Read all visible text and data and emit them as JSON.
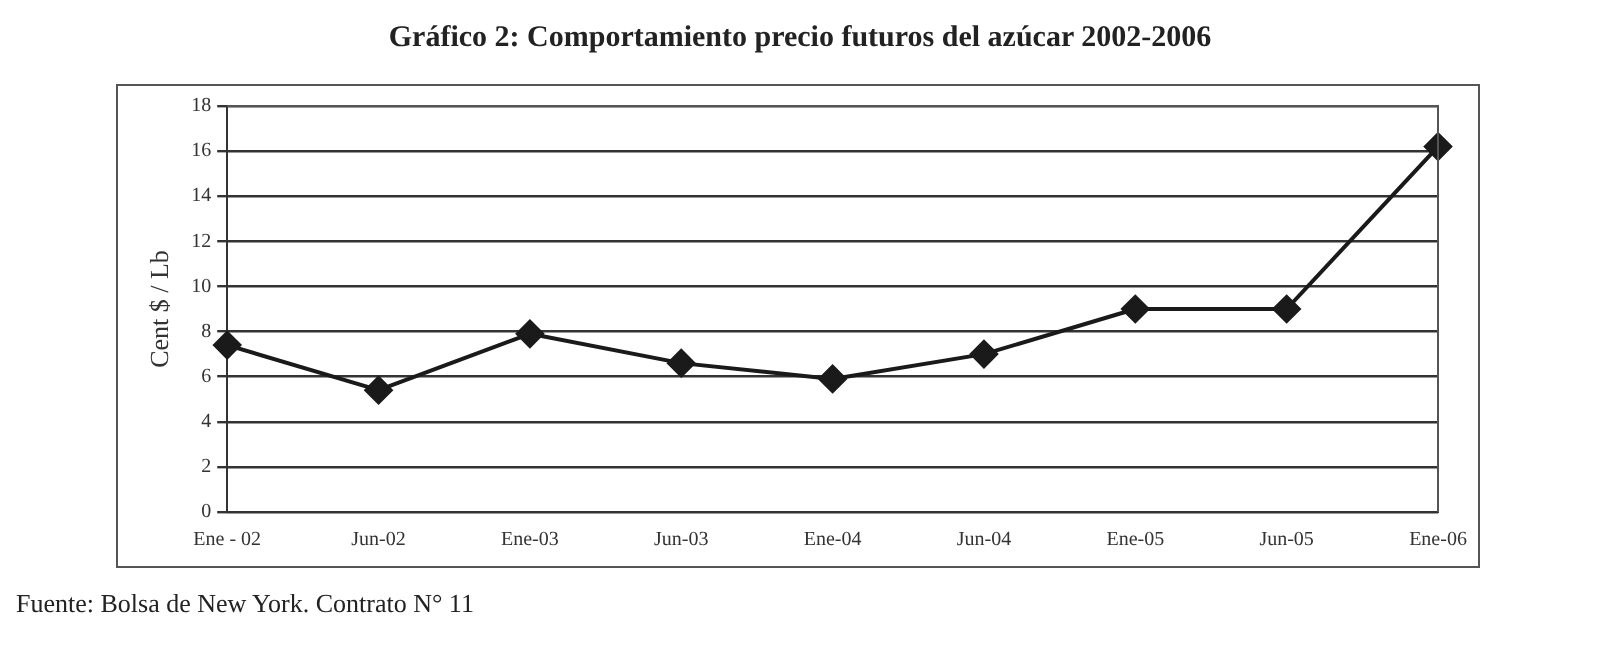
{
  "chart_data": {
    "type": "line",
    "title": "Gráfico 2: Comportamiento precio futuros del azúcar 2002-2006",
    "ylabel": "Cent $ / Lb",
    "categories": [
      "Ene - 02",
      "Jun-02",
      "Ene-03",
      "Jun-03",
      "Ene-04",
      "Jun-04",
      "Ene-05",
      "Jun-05",
      "Ene-06"
    ],
    "series": [
      {
        "color": "#1a1a1a",
        "values": [
          7.4,
          5.4,
          7.9,
          6.6,
          5.9,
          7.0,
          9.0,
          9.0,
          16.2
        ]
      }
    ],
    "ylim": [
      0,
      18
    ],
    "yticks": [
      0,
      2,
      4,
      6,
      8,
      10,
      12,
      14,
      16,
      18
    ],
    "grid": "y",
    "legend": false,
    "marker": "diamond",
    "line_style": "solid",
    "annotations": [
      "Fuente: Bolsa de New York. Contrato N° 11"
    ]
  }
}
